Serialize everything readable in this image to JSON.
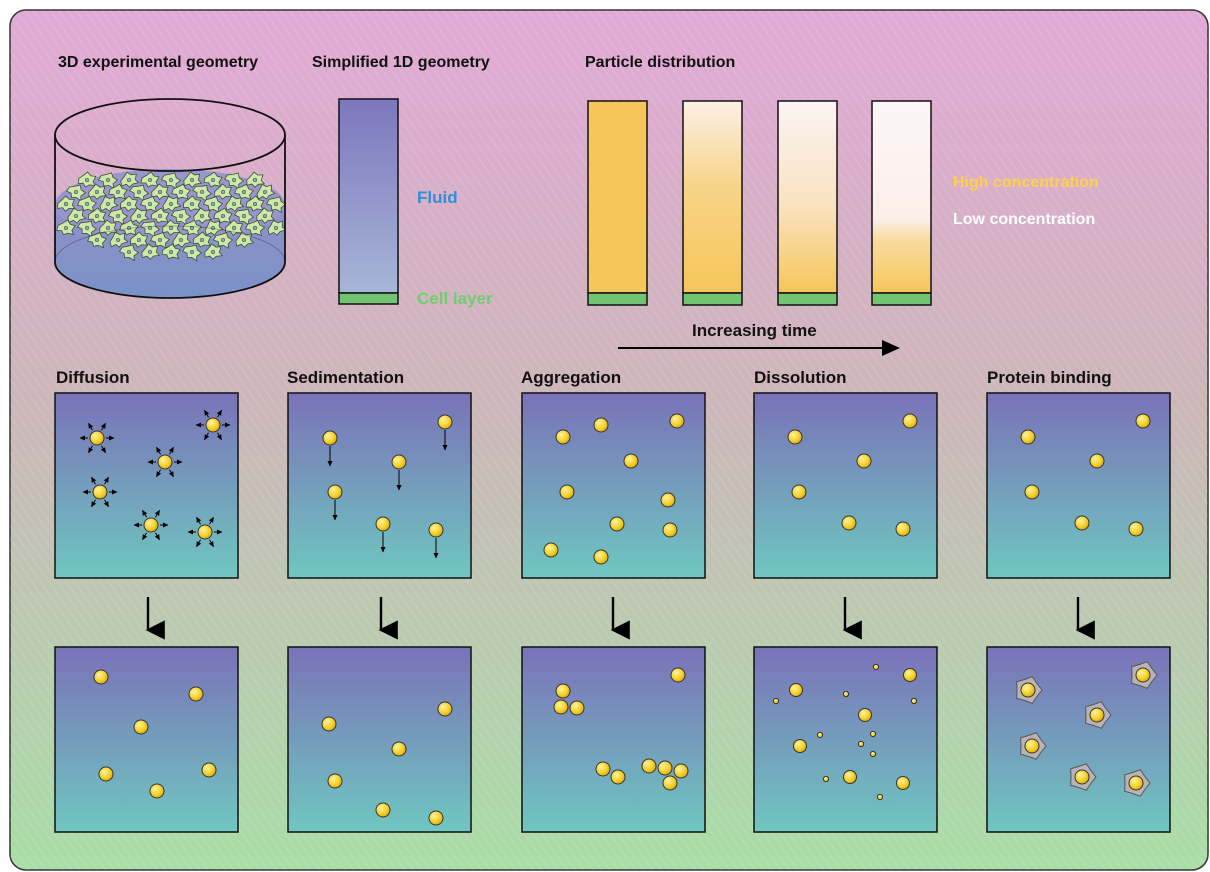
{
  "headings": {
    "geometry_3d": "3D experimental geometry",
    "geometry_1d": "Simplified 1D geometry",
    "particle_distribution": "Particle distribution"
  },
  "labels": {
    "fluid": "Fluid",
    "cell_layer": "Cell layer",
    "high_concentration": "High concentration",
    "low_concentration": "Low concentration",
    "increasing_time": "Increasing time"
  },
  "processes": [
    {
      "name": "Diffusion"
    },
    {
      "name": "Sedimentation"
    },
    {
      "name": "Aggregation"
    },
    {
      "name": "Dissolution"
    },
    {
      "name": "Protein binding"
    }
  ],
  "colors": {
    "fluid_label": "#2f8fd8",
    "cell_label": "#6fcf6f",
    "high_conc_label": "#ffd24a",
    "low_conc_label": "#ffffff",
    "cell_layer": "#72c472",
    "concentration": "#f7c85a",
    "particle": "#f5d12c",
    "fluid_top": "#7a72b8",
    "fluid_bottom": "#6fc7c0"
  }
}
